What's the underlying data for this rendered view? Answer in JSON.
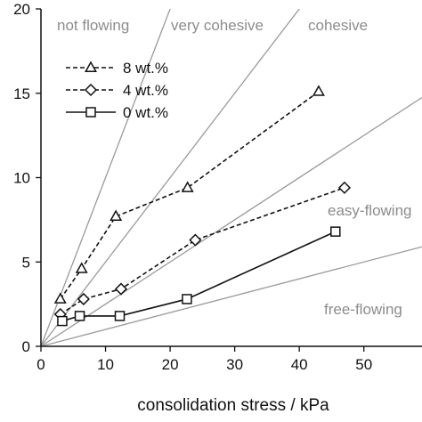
{
  "chart_data": {
    "type": "line",
    "title": "",
    "xlabel": "consolidation stress / kPa",
    "ylabel": "",
    "xlim": [
      0,
      59
    ],
    "ylim": [
      0,
      20
    ],
    "xticks": [
      "0",
      "10",
      "20",
      "30",
      "40",
      "50"
    ],
    "yticks": [
      "0",
      "5",
      "10",
      "15",
      "20"
    ],
    "grid": false,
    "legend_position": "top-left",
    "colors": {
      "axis": "#111111",
      "region_lines": "#9a9a9a",
      "region_labels": "#8c8c8c",
      "series": "#111111"
    },
    "regions": [
      {
        "label": "not flowing",
        "slope": 1.0
      },
      {
        "label": "very cohesive",
        "slope": 0.5
      },
      {
        "label": "cohesive",
        "slope": 0.25
      },
      {
        "label": "easy-flowing",
        "slope": 0.1
      },
      {
        "label": "free-flowing",
        "slope": null
      }
    ],
    "series": [
      {
        "name": "8 wt.%",
        "marker": "triangle",
        "dash": "dashed",
        "x": [
          3.0,
          6.3,
          11.6,
          22.7,
          43.0
        ],
        "y": [
          2.8,
          4.6,
          7.7,
          9.4,
          15.1
        ]
      },
      {
        "name": "4 wt.%",
        "marker": "diamond",
        "dash": "dashed",
        "x": [
          3.0,
          6.6,
          12.4,
          23.9,
          47.0
        ],
        "y": [
          1.9,
          2.8,
          3.4,
          6.3,
          9.4
        ]
      },
      {
        "name": "0 wt.%",
        "marker": "square",
        "dash": "solid",
        "x": [
          3.3,
          6.0,
          12.2,
          22.6,
          45.6
        ],
        "y": [
          1.5,
          1.8,
          1.8,
          2.8,
          6.8
        ]
      }
    ]
  }
}
